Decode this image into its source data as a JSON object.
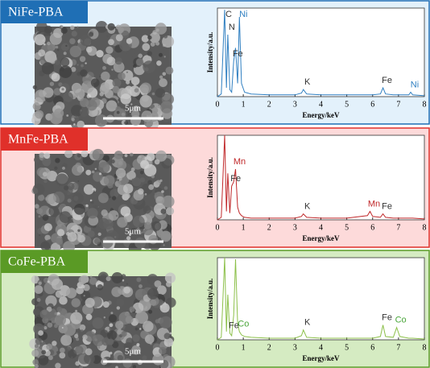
{
  "chart_data": [
    {
      "type": "line",
      "title": "NiFe-PBA",
      "scale_bar": "5μm",
      "xlabel": "Energy/keV",
      "ylabel": "Intensity/a.u.",
      "panel_color": "#1f6fb5",
      "background": "#e3f1fb",
      "x": [
        0,
        0.15,
        0.28,
        0.35,
        0.4,
        0.48,
        0.55,
        0.63,
        0.7,
        0.78,
        0.85,
        0.93,
        1.05,
        1.3,
        2,
        3,
        3.25,
        3.32,
        3.45,
        4,
        5,
        5.8,
        5.9,
        6,
        6.3,
        6.4,
        6.5,
        6.8,
        6.93,
        7.05,
        7.4,
        7.47,
        7.55,
        8
      ],
      "series": [
        {
          "color": "#2f7fc1",
          "values": [
            0,
            3,
            98,
            10,
            70,
            8,
            5,
            40,
            55,
            15,
            90,
            15,
            5,
            3,
            2,
            2,
            4,
            8,
            3,
            2,
            2,
            2,
            2,
            2,
            3,
            10,
            3,
            2,
            2,
            2,
            2,
            5,
            2,
            1
          ]
        }
      ],
      "annotations": [
        {
          "text": "C",
          "x": 0.28,
          "color": "#333"
        },
        {
          "text": "N",
          "x": 0.4,
          "color": "#333"
        },
        {
          "text": "Fe",
          "x": 0.63,
          "color": "#333"
        },
        {
          "text": "Ni",
          "x": 0.85,
          "color": "#2f7fc1"
        },
        {
          "text": "K",
          "x": 3.32,
          "color": "#333"
        },
        {
          "text": "Fe",
          "x": 6.4,
          "color": "#333"
        },
        {
          "text": "Ni",
          "x": 7.47,
          "color": "#2f7fc1"
        }
      ],
      "xlim": [
        0,
        8
      ],
      "xticks": [
        0,
        1,
        2,
        3,
        4,
        5,
        6,
        7,
        8
      ],
      "ylim": [
        0,
        100
      ]
    },
    {
      "type": "line",
      "title": "MnFe-PBA",
      "scale_bar": "5μm",
      "xlabel": "Energy/keV",
      "ylabel": "Intensity/a.u.",
      "panel_color": "#e0302a",
      "background": "#fddada",
      "x": [
        0,
        0.15,
        0.28,
        0.35,
        0.4,
        0.48,
        0.55,
        0.63,
        0.7,
        0.78,
        0.85,
        0.93,
        1.05,
        1.3,
        2,
        3,
        3.25,
        3.32,
        3.45,
        4,
        5,
        5.8,
        5.9,
        6,
        6.3,
        6.4,
        6.5,
        6.8,
        6.93,
        7.05,
        7.4,
        7.47,
        7.55,
        8
      ],
      "series": [
        {
          "color": "#c0282a",
          "values": [
            0,
            3,
            100,
            10,
            55,
            8,
            40,
            45,
            60,
            15,
            8,
            5,
            3,
            2,
            2,
            2,
            4,
            7,
            3,
            2,
            2,
            5,
            10,
            4,
            3,
            7,
            3,
            2,
            2,
            2,
            2,
            2,
            2,
            1
          ]
        }
      ],
      "annotations": [
        {
          "text": "Fe",
          "x": 0.55,
          "color": "#333"
        },
        {
          "text": "Mn",
          "x": 0.7,
          "color": "#c0282a"
        },
        {
          "text": "K",
          "x": 3.32,
          "color": "#333"
        },
        {
          "text": "Mn",
          "x": 5.9,
          "color": "#c0282a"
        },
        {
          "text": "Fe",
          "x": 6.4,
          "color": "#333"
        }
      ],
      "xlim": [
        0,
        8
      ],
      "xticks": [
        0,
        1,
        2,
        3,
        4,
        5,
        6,
        7,
        8
      ],
      "ylim": [
        0,
        100
      ]
    },
    {
      "type": "line",
      "title": "CoFe-PBA",
      "scale_bar": "5μm",
      "xlabel": "Energy/keV",
      "ylabel": "Intensity/a.u.",
      "panel_color": "#5a9a25",
      "background": "#d5ebc2",
      "x": [
        0,
        0.15,
        0.28,
        0.35,
        0.4,
        0.48,
        0.55,
        0.63,
        0.7,
        0.78,
        0.85,
        0.93,
        1.05,
        1.3,
        2,
        3,
        3.25,
        3.32,
        3.45,
        4,
        5,
        5.8,
        5.9,
        6,
        6.3,
        6.4,
        6.5,
        6.8,
        6.93,
        7.05,
        7.4,
        7.47,
        7.55,
        8
      ],
      "series": [
        {
          "color": "#8cc04a",
          "values": [
            0,
            3,
            100,
            10,
            55,
            8,
            5,
            30,
            98,
            20,
            10,
            6,
            4,
            3,
            2,
            2,
            5,
            12,
            3,
            2,
            2,
            2,
            2,
            2,
            4,
            18,
            4,
            3,
            15,
            4,
            2,
            2,
            2,
            1
          ]
        }
      ],
      "annotations": [
        {
          "text": "Fe",
          "x": 0.48,
          "color": "#333"
        },
        {
          "text": "Co",
          "x": 0.85,
          "color": "#4aa63a"
        },
        {
          "text": "K",
          "x": 3.32,
          "color": "#333"
        },
        {
          "text": "Fe",
          "x": 6.4,
          "color": "#333"
        },
        {
          "text": "Co",
          "x": 6.93,
          "color": "#4aa63a"
        }
      ],
      "xlim": [
        0,
        8
      ],
      "xticks": [
        0,
        1,
        2,
        3,
        4,
        5,
        6,
        7,
        8
      ],
      "ylim": [
        0,
        100
      ]
    }
  ]
}
